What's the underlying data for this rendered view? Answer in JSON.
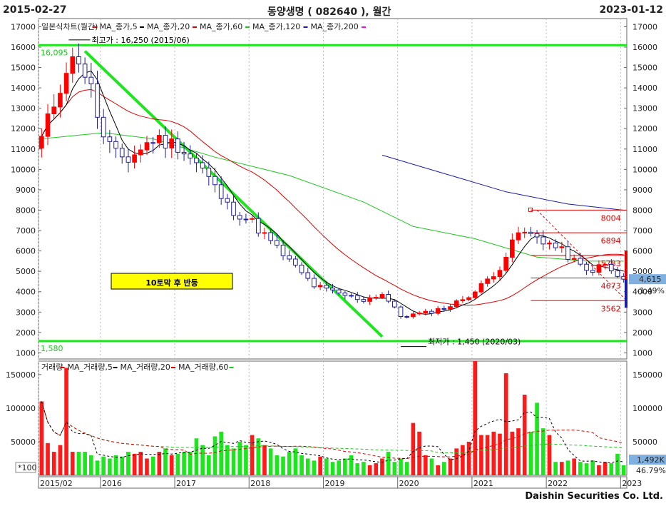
{
  "header": {
    "start_date": "2015-02-27",
    "title": "동양생명 ( 082640 ), 월간",
    "end_date": "2023-01-12"
  },
  "footer": {
    "company": "Daishin Securities Co. Ltd."
  },
  "colors": {
    "up": "#ff0000",
    "down": "#1e1ea0",
    "ma5": "#000000",
    "ma20": "#dd0000",
    "ma60": "#1ec81e",
    "ma120": "#1a1aaa",
    "support": "#1ee61e",
    "vol_up": "#ff1a1a",
    "vol_down": "#1ee61e"
  },
  "chart_data": [
    {
      "type": "candlestick",
      "name": "price",
      "legend": [
        "일본식차트(월간)",
        "MA_종가,5",
        "MA_종가,20",
        "MA_종가,60",
        "MA_종가,120",
        "MA_종가,200"
      ],
      "ylim": [
        700,
        17400
      ],
      "yticks": [
        1000,
        2000,
        3000,
        4000,
        5000,
        6000,
        7000,
        8000,
        9000,
        10000,
        11000,
        12000,
        13000,
        14000,
        15000,
        16000,
        17000
      ],
      "ytick_labels": [
        "1000",
        "2000",
        "3000",
        "4000",
        "5000",
        "6000",
        "7000",
        "8000",
        "9000",
        "10000",
        "11000",
        "12000",
        "13000",
        "14000",
        "15000",
        "16000",
        "17000"
      ],
      "x_year_labels": [
        "2015/02",
        "2016",
        "2017",
        "2018",
        "2019",
        "2020",
        "2021",
        "2022",
        "2023"
      ],
      "x_year_index": [
        0,
        10,
        22,
        34,
        46,
        58,
        70,
        82,
        94
      ],
      "anchor_prices": [
        [
          0,
          11500
        ],
        [
          4,
          15000
        ],
        [
          6,
          15500
        ],
        [
          8,
          13900
        ],
        [
          10,
          11500
        ],
        [
          12,
          10700
        ],
        [
          14,
          10500
        ],
        [
          18,
          11500
        ],
        [
          22,
          11200
        ],
        [
          26,
          10000
        ],
        [
          30,
          8200
        ],
        [
          34,
          7400
        ],
        [
          40,
          5500
        ],
        [
          44,
          4300
        ],
        [
          48,
          3900
        ],
        [
          52,
          3600
        ],
        [
          55,
          3900
        ],
        [
          58,
          2800
        ],
        [
          62,
          2950
        ],
        [
          66,
          3300
        ],
        [
          70,
          4000
        ],
        [
          74,
          5200
        ],
        [
          77,
          6900
        ],
        [
          80,
          6700
        ],
        [
          84,
          6000
        ],
        [
          88,
          5000
        ],
        [
          91,
          5300
        ],
        [
          93,
          4700
        ],
        [
          94,
          4615
        ]
      ],
      "ma60_points": [
        [
          0,
          11500
        ],
        [
          10,
          11800
        ],
        [
          18,
          11500
        ],
        [
          28,
          10600
        ],
        [
          40,
          9700
        ],
        [
          52,
          8400
        ],
        [
          60,
          7200
        ],
        [
          70,
          6600
        ],
        [
          80,
          5700
        ],
        [
          88,
          5500
        ],
        [
          94,
          5500
        ]
      ],
      "ma120_points": [
        [
          55,
          10700
        ],
        [
          65,
          9800
        ],
        [
          75,
          8900
        ],
        [
          85,
          8300
        ],
        [
          94,
          8000
        ]
      ],
      "high_annotation": "최고가 : 16,250 (2015/06)",
      "low_annotation": "최저가 : 1,450 (2020/03)",
      "support_lines": [
        {
          "label": "16,095",
          "value": 16095
        },
        {
          "label": "1,580",
          "value": 1580
        }
      ],
      "trendline": {
        "from": [
          7,
          15800
        ],
        "to": [
          55,
          1800
        ]
      },
      "fib_levels": [
        {
          "label": "8004",
          "value": 8004
        },
        {
          "label": "6894",
          "value": 6894
        },
        {
          "label": "5783",
          "value": 5783
        },
        {
          "label": "4673",
          "value": 4673
        },
        {
          "label": "3562",
          "value": 3562
        }
      ],
      "badge": "10토막 후 반등",
      "last_price": "4,615",
      "last_change": "-1.49%"
    },
    {
      "type": "bar",
      "name": "volume",
      "legend": [
        "거래량",
        "MA_거래량,5",
        "MA_거래량,20",
        "MA_거래량,60"
      ],
      "ylim": [
        0,
        170000
      ],
      "yticks": [
        50000,
        100000,
        150000
      ],
      "ytick_labels": [
        "50000",
        "100000",
        "150000"
      ],
      "unit_label": "*100",
      "values": [
        110000,
        48000,
        35000,
        45000,
        160000,
        35000,
        35000,
        35000,
        30000,
        22000,
        28000,
        25000,
        30000,
        28000,
        35000,
        32000,
        35000,
        25000,
        28000,
        35000,
        40000,
        30000,
        32000,
        35000,
        35000,
        55000,
        45000,
        30000,
        58000,
        65000,
        45000,
        40000,
        50000,
        45000,
        60000,
        55000,
        45000,
        40000,
        30000,
        28000,
        35000,
        40000,
        30000,
        25000,
        22000,
        28000,
        25000,
        20000,
        22000,
        25000,
        30000,
        18000,
        20000,
        15000,
        18000,
        25000,
        35000,
        20000,
        25000,
        20000,
        78000,
        65000,
        30000,
        25000,
        15000,
        20000,
        25000,
        40000,
        45000,
        50000,
        170000,
        60000,
        60000,
        65000,
        62000,
        152000,
        65000,
        70000,
        120000,
        65000,
        108000,
        70000,
        60000,
        20000,
        20000,
        22000,
        25000,
        20000,
        18000,
        22000,
        15000,
        20000,
        18000,
        32000,
        15000
      ],
      "last_value": "1,492K",
      "last_ratio": "46.79%"
    }
  ]
}
